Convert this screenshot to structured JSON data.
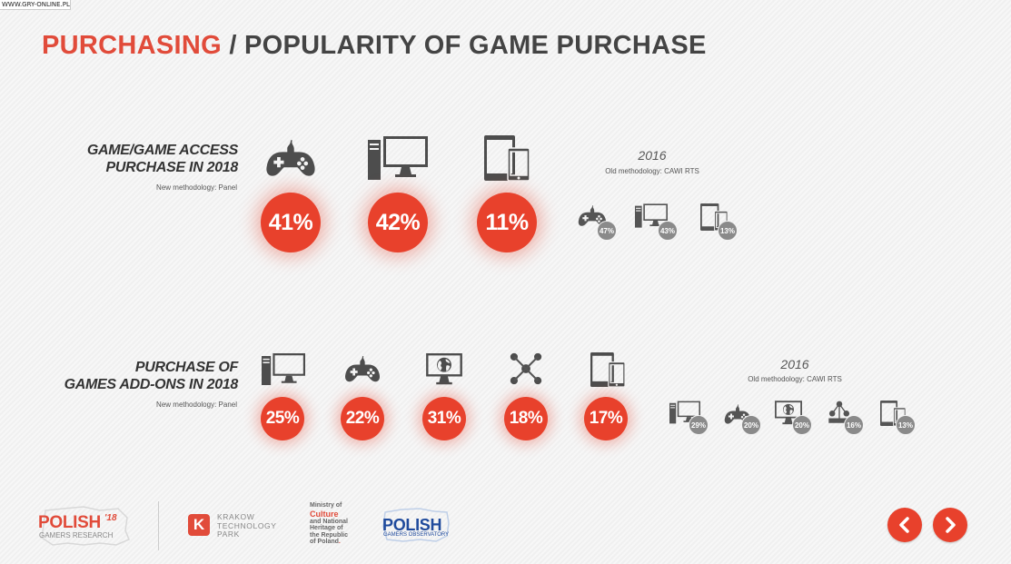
{
  "watermark": "WWW.GRY-ONLINE.PL",
  "page": {
    "title_accent": "PURCHASING",
    "title_rest": " / POPULARITY OF GAME PURCHASE"
  },
  "section_game_access": {
    "label_line1": "GAME/GAME ACCESS",
    "label_line2": "PURCHASE IN 2018",
    "methodology": "New methodology: Panel",
    "items": [
      {
        "icon": "gamepad-icon",
        "value": "41%"
      },
      {
        "icon": "desktop-computer-icon",
        "value": "42%"
      },
      {
        "icon": "mobile-devices-icon",
        "value": "11%"
      }
    ],
    "old": {
      "year": "2016",
      "methodology": "Old methodology: CAWI RTS",
      "items": [
        {
          "icon": "gamepad-icon",
          "value": "47%"
        },
        {
          "icon": "desktop-computer-icon",
          "value": "43%"
        },
        {
          "icon": "mobile-devices-icon",
          "value": "13%"
        }
      ]
    }
  },
  "section_addons": {
    "label_line1": "PURCHASE OF",
    "label_line2": "GAMES ADD-ONS IN 2018",
    "methodology": "New methodology: Panel",
    "items": [
      {
        "icon": "desktop-computer-icon",
        "value": "25%"
      },
      {
        "icon": "gamepad-icon",
        "value": "22%"
      },
      {
        "icon": "web-monitor-icon",
        "value": "31%"
      },
      {
        "icon": "network-icon",
        "value": "18%"
      },
      {
        "icon": "mobile-devices-icon",
        "value": "17%"
      }
    ],
    "old": {
      "year": "2016",
      "methodology": "Old methodology: CAWI RTS",
      "items": [
        {
          "icon": "desktop-computer-icon",
          "value": "29%"
        },
        {
          "icon": "gamepad-icon",
          "value": "20%"
        },
        {
          "icon": "web-monitor-icon",
          "value": "20%"
        },
        {
          "icon": "network-icon",
          "value": "16%"
        },
        {
          "icon": "mobile-devices-icon",
          "value": "13%"
        }
      ]
    }
  },
  "footer": {
    "polish_gamers_main": "POLISH",
    "polish_gamers_year": "'18",
    "polish_gamers_sub": "GAMERS RESEARCH",
    "krakow_letter": "K",
    "krakow_line1": "KRAKOW",
    "krakow_line2": "TECHNOLOGY",
    "krakow_line3": "PARK",
    "ministry_line1": "Ministry of",
    "ministry_line2": "Culture",
    "ministry_line3": "and National",
    "ministry_line4": "Heritage of",
    "ministry_line5": "the Republic",
    "ministry_line6": "of Poland",
    "pgo_main": "POLISH",
    "pgo_sub": "GAMERS OBSERVATORY"
  },
  "colors": {
    "accent": "#e8412c",
    "title_accent": "#e14b3a",
    "icon": "#4d4d4d",
    "old_badge": "#8a8a8a"
  }
}
